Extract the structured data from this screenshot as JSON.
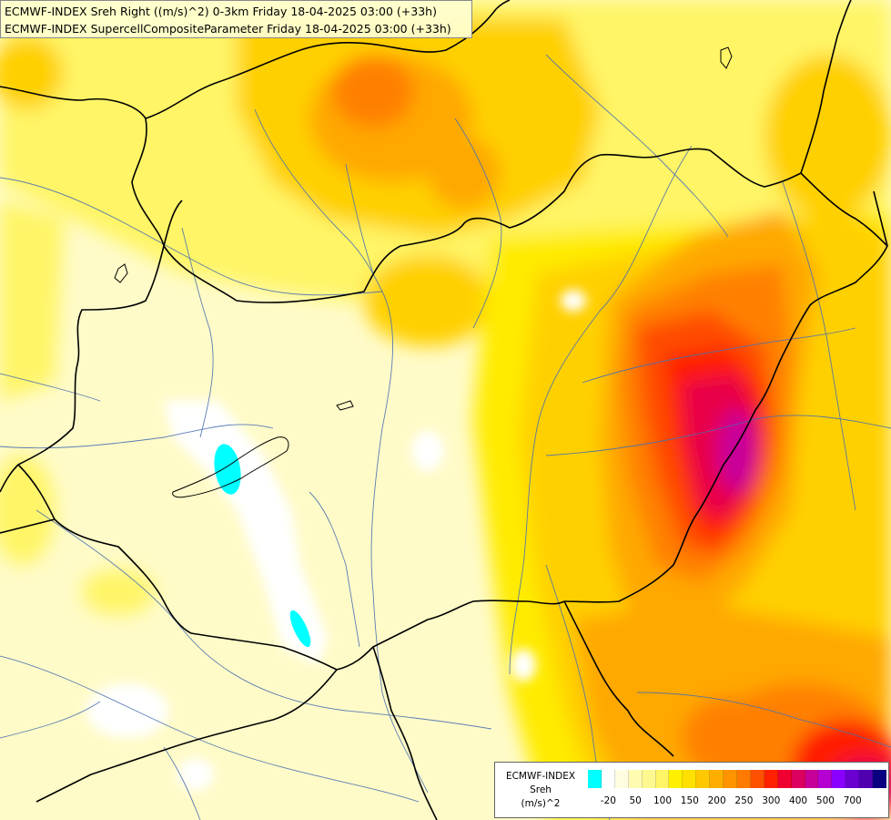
{
  "header": {
    "line1": "ECMWF-INDEX Sreh Right ((m/s)^2) 0-3km Friday 18-04-2025 03:00 (+33h)",
    "line2": "ECMWF-INDEX SupercellCompositeParameter Friday 18-04-2025 03:00 (+33h)"
  },
  "legend": {
    "source": "ECMWF-INDEX",
    "variable": "Sreh",
    "unit": "(m/s)^2",
    "colors": [
      "#00ffff",
      "#ffffff",
      "#fffde0",
      "#fffbb0",
      "#fff890",
      "#fff566",
      "#fff000",
      "#ffe000",
      "#ffc800",
      "#ffae00",
      "#ff9400",
      "#ff7a00",
      "#ff5000",
      "#ff2000",
      "#f00030",
      "#dc0060",
      "#c8009a",
      "#b400d0",
      "#8a00ff",
      "#6a00d0",
      "#5000b0",
      "#0a0080"
    ],
    "tick_labels": [
      "-20",
      "50",
      "100",
      "150",
      "200",
      "250",
      "300",
      "400",
      "500",
      "700"
    ]
  },
  "map": {
    "fields": [
      {
        "level": "white",
        "color": "#ffffff"
      },
      {
        "level": "cyan",
        "color": "#00ffff"
      },
      {
        "level": "pale",
        "color": "#fffbc8"
      },
      {
        "level": "yellow",
        "color": "#fff566"
      },
      {
        "level": "yellow2",
        "color": "#ffeb00"
      },
      {
        "level": "gold",
        "color": "#ffd000"
      },
      {
        "level": "orange",
        "color": "#ffa800"
      },
      {
        "level": "dark-orange",
        "color": "#ff8000"
      },
      {
        "level": "red-orange",
        "color": "#ff4c00"
      },
      {
        "level": "red",
        "color": "#ff1a00"
      },
      {
        "level": "crimson",
        "color": "#e8004a"
      },
      {
        "level": "magenta",
        "color": "#c8009a"
      }
    ]
  }
}
